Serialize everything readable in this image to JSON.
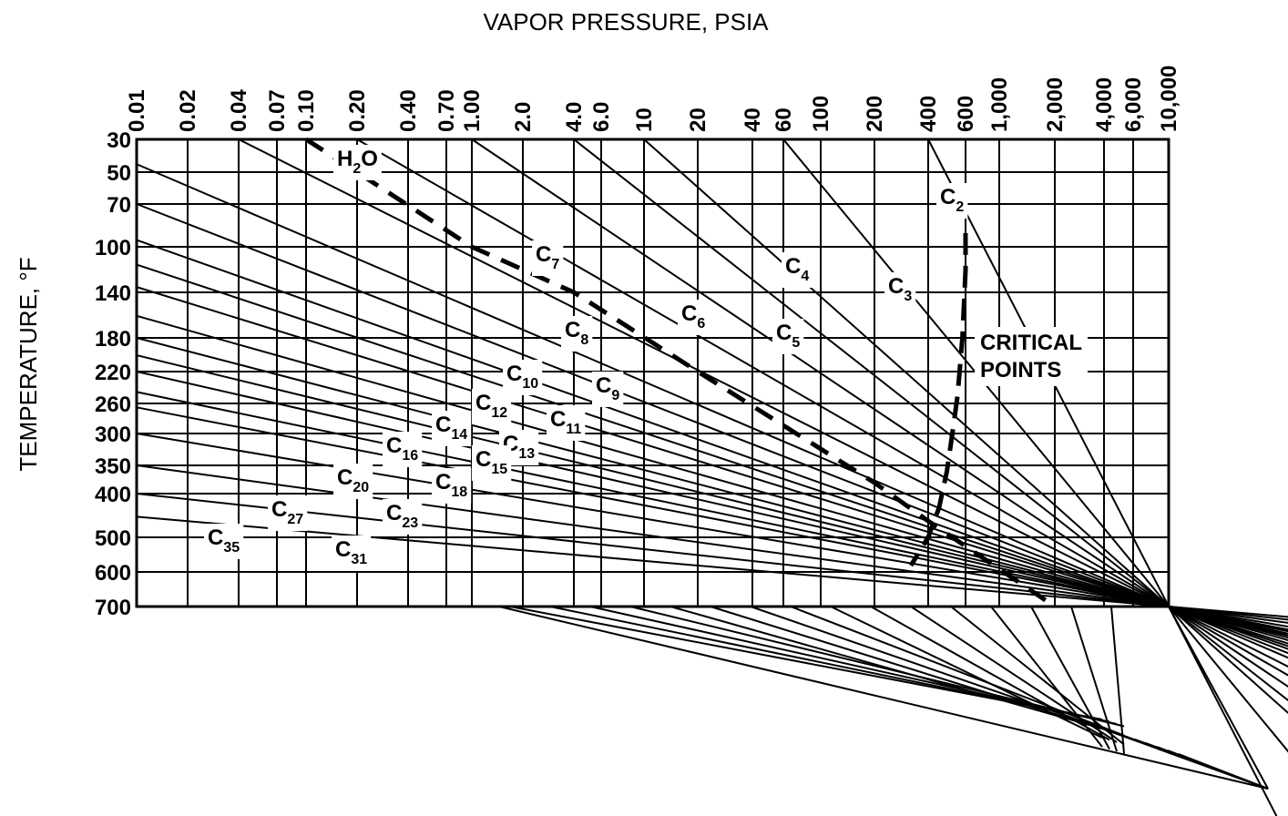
{
  "chart_data": {
    "type": "line",
    "chart_kind": "nomograph",
    "xlabel": "VAPOR PRESSURE, PSIA",
    "ylabel": "TEMPERATURE, °F",
    "x_scale": "log",
    "xlim": [
      0.01,
      10000
    ],
    "ylim": [
      30,
      700
    ],
    "y_scale": "reciprocal (1/(T+460))",
    "grid": true,
    "x_ticks": [
      {
        "value": 0.01,
        "label": "0.01"
      },
      {
        "value": 0.02,
        "label": "0.02"
      },
      {
        "value": 0.04,
        "label": "0.04"
      },
      {
        "value": 0.07,
        "label": "0.07"
      },
      {
        "value": 0.1,
        "label": "0.10"
      },
      {
        "value": 0.2,
        "label": "0.20"
      },
      {
        "value": 0.4,
        "label": "0.40"
      },
      {
        "value": 0.7,
        "label": "0.70"
      },
      {
        "value": 1.0,
        "label": "1.00"
      },
      {
        "value": 2.0,
        "label": "2.0"
      },
      {
        "value": 4.0,
        "label": "4.0"
      },
      {
        "value": 6.0,
        "label": "6.0"
      },
      {
        "value": 10,
        "label": "10"
      },
      {
        "value": 20,
        "label": "20"
      },
      {
        "value": 40,
        "label": "40"
      },
      {
        "value": 60,
        "label": "60"
      },
      {
        "value": 100,
        "label": "100"
      },
      {
        "value": 200,
        "label": "200"
      },
      {
        "value": 400,
        "label": "400"
      },
      {
        "value": 600,
        "label": "600"
      },
      {
        "value": 1000,
        "label": "1,000"
      },
      {
        "value": 2000,
        "label": "2,000"
      },
      {
        "value": 4000,
        "label": "4,000"
      },
      {
        "value": 6000,
        "label": "6,000"
      },
      {
        "value": 10000,
        "label": "10,000"
      }
    ],
    "y_ticks": [
      {
        "value": 30,
        "label": "30"
      },
      {
        "value": 50,
        "label": "50"
      },
      {
        "value": 70,
        "label": "70"
      },
      {
        "value": 100,
        "label": "100"
      },
      {
        "value": 140,
        "label": "140"
      },
      {
        "value": 180,
        "label": "180"
      },
      {
        "value": 220,
        "label": "220"
      },
      {
        "value": 260,
        "label": "260"
      },
      {
        "value": 300,
        "label": "300"
      },
      {
        "value": 350,
        "label": "350"
      },
      {
        "value": 400,
        "label": "400"
      },
      {
        "value": 500,
        "label": "500"
      },
      {
        "value": 600,
        "label": "600"
      },
      {
        "value": 700,
        "label": "700"
      }
    ],
    "series": [
      {
        "base": "C",
        "sub": "2",
        "points": [
          {
            "x": 400,
            "y": 30
          },
          {
            "x": 10000,
            "y": 700
          }
        ]
      },
      {
        "base": "C",
        "sub": "3",
        "points": [
          {
            "x": 60,
            "y": 30
          },
          {
            "x": 10000,
            "y": 700
          }
        ]
      },
      {
        "base": "C",
        "sub": "4",
        "points": [
          {
            "x": 10,
            "y": 30
          },
          {
            "x": 10000,
            "y": 700
          }
        ]
      },
      {
        "base": "C",
        "sub": "5",
        "points": [
          {
            "x": 4.0,
            "y": 30
          },
          {
            "x": 10000,
            "y": 700
          }
        ]
      },
      {
        "base": "C",
        "sub": "6",
        "points": [
          {
            "x": 1.0,
            "y": 30
          },
          {
            "x": 10000,
            "y": 700
          }
        ]
      },
      {
        "base": "C",
        "sub": "7",
        "points": [
          {
            "x": 0.2,
            "y": 30
          },
          {
            "x": 10000,
            "y": 700
          }
        ]
      },
      {
        "base": "C",
        "sub": "8",
        "points": [
          {
            "x": 0.04,
            "y": 30
          },
          {
            "x": 10000,
            "y": 700
          }
        ]
      },
      {
        "base": "C",
        "sub": "9",
        "points": [
          {
            "x": 0.01,
            "y": 45
          },
          {
            "x": 10000,
            "y": 700
          }
        ]
      },
      {
        "base": "C",
        "sub": "10",
        "points": [
          {
            "x": 0.01,
            "y": 70
          },
          {
            "x": 10000,
            "y": 700
          }
        ]
      },
      {
        "base": "C",
        "sub": "11",
        "points": [
          {
            "x": 0.01,
            "y": 95
          },
          {
            "x": 10000,
            "y": 700
          }
        ]
      },
      {
        "base": "C",
        "sub": "12",
        "points": [
          {
            "x": 0.01,
            "y": 115
          },
          {
            "x": 10000,
            "y": 700
          }
        ]
      },
      {
        "base": "C",
        "sub": "13",
        "points": [
          {
            "x": 0.01,
            "y": 135
          },
          {
            "x": 10000,
            "y": 700
          }
        ]
      },
      {
        "base": "C",
        "sub": "14",
        "points": [
          {
            "x": 0.01,
            "y": 160
          },
          {
            "x": 10000,
            "y": 700
          }
        ]
      },
      {
        "base": "C",
        "sub": "15",
        "points": [
          {
            "x": 0.01,
            "y": 180
          },
          {
            "x": 10000,
            "y": 700
          }
        ]
      },
      {
        "base": "C",
        "sub": "16",
        "points": [
          {
            "x": 0.01,
            "y": 200
          },
          {
            "x": 10000,
            "y": 700
          }
        ]
      },
      {
        "base": "C",
        "sub": "18",
        "points": [
          {
            "x": 0.01,
            "y": 220
          },
          {
            "x": 10000,
            "y": 700
          }
        ]
      },
      {
        "base": "C",
        "sub": "20",
        "points": [
          {
            "x": 0.01,
            "y": 245
          },
          {
            "x": 10000,
            "y": 700
          }
        ]
      },
      {
        "base": "C",
        "sub": "23",
        "points": [
          {
            "x": 0.01,
            "y": 265
          },
          {
            "x": 10000,
            "y": 700
          }
        ]
      },
      {
        "base": "C",
        "sub": "27",
        "points": [
          {
            "x": 0.01,
            "y": 300
          },
          {
            "x": 10000,
            "y": 700
          }
        ]
      },
      {
        "base": "C",
        "sub": "31",
        "points": [
          {
            "x": 0.01,
            "y": 350
          },
          {
            "x": 10000,
            "y": 700
          }
        ]
      },
      {
        "base": "C",
        "sub": "35",
        "points": [
          {
            "x": 0.01,
            "y": 400
          },
          {
            "x": 10000,
            "y": 700
          }
        ]
      },
      {
        "base": "C",
        "sub": "",
        "points": [
          {
            "x": 0.01,
            "y": 450
          },
          {
            "x": 10000,
            "y": 700
          }
        ]
      }
    ],
    "water_curve": {
      "base": "H",
      "sub": "2",
      "tail": "O",
      "points": [
        {
          "x": 0.1,
          "y": 30
        },
        {
          "x": 0.2,
          "y": 50
        },
        {
          "x": 1.0,
          "y": 100
        },
        {
          "x": 4.0,
          "y": 140
        },
        {
          "x": 20,
          "y": 220
        },
        {
          "x": 200,
          "y": 380
        },
        {
          "x": 400,
          "y": 460
        },
        {
          "x": 2000,
          "y": 700
        }
      ]
    },
    "critical_locus": {
      "label_lines": [
        "CRITICAL",
        "POINTS"
      ],
      "points": [
        {
          "x": 600,
          "y": 90
        },
        {
          "x": 600,
          "y": 120
        },
        {
          "x": 580,
          "y": 180
        },
        {
          "x": 550,
          "y": 250
        },
        {
          "x": 520,
          "y": 300
        },
        {
          "x": 490,
          "y": 360
        },
        {
          "x": 450,
          "y": 430
        },
        {
          "x": 400,
          "y": 500
        },
        {
          "x": 320,
          "y": 580
        }
      ]
    }
  }
}
